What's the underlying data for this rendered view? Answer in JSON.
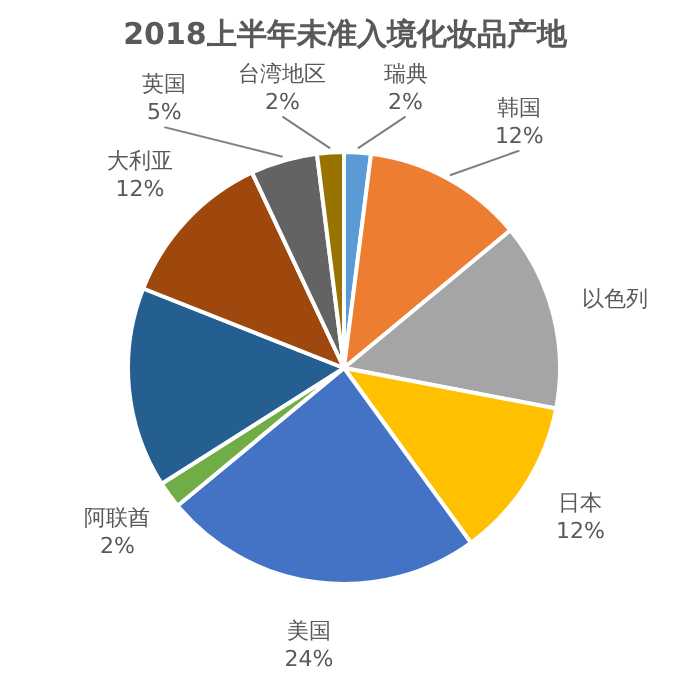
{
  "chart_data": {
    "type": "pie",
    "title": "2018上半年未准入境化妆品产地",
    "categories": [
      "瑞典",
      "韩国",
      "以色列",
      "日本",
      "美国",
      "阿联酋",
      null,
      "大利亚",
      "英国",
      "台湾地区"
    ],
    "values": [
      2,
      12,
      14,
      12,
      24,
      2,
      15,
      12,
      5,
      2
    ],
    "value_labels": [
      "2%",
      "12%",
      null,
      "12%",
      "24%",
      "2%",
      null,
      "12%",
      "5%",
      "2%"
    ],
    "colors": [
      "#5b9bd5",
      "#ed7d31",
      "#a5a5a5",
      "#ffc000",
      "#4472c4",
      "#70ad47",
      "#255e91",
      "#9e480e",
      "#636363",
      "#997300"
    ]
  }
}
